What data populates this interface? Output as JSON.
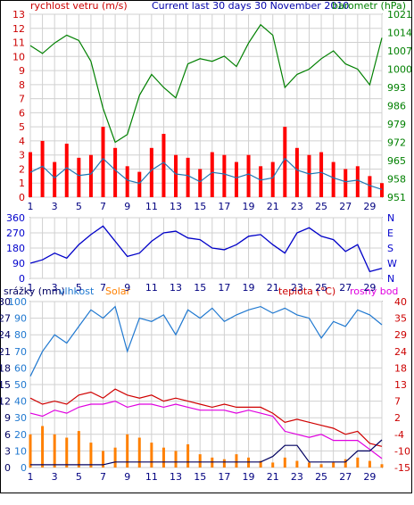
{
  "header": {
    "left_label": "rychlost vetru (m/s)",
    "title": "Current last 30 days 30 November 2010",
    "right_label": "barometr (hPa)"
  },
  "panel3_labels": {
    "rain": "srážky (mm)",
    "humidity": "vlhkost",
    "solar": "Solar",
    "temperature": "teplota (°C)",
    "dewpoint": "rosný bod"
  },
  "colors": {
    "wind": "#ff0000",
    "wind_avg": "#1f78b4",
    "barometer": "#008000",
    "direction": "#0000c8",
    "humidity": "#1f78d0",
    "solar": "#ff8000",
    "temperature": "#d00000",
    "dewpoint": "#e000e0",
    "rain": "#000060",
    "axis_left": "#0000ff",
    "axis_right": "#cc0000",
    "grid": "#d0d0d0"
  },
  "chart_data": [
    {
      "type": "line",
      "title": "Current last 30 days 30 November 2010",
      "ylabel": "rychlost vetru (m/s)",
      "y2label": "barometr (hPa)",
      "ylim": [
        0,
        13
      ],
      "y2lim": [
        951,
        1021
      ],
      "y_ticks": [
        "0",
        "1",
        "2",
        "3",
        "4",
        "5",
        "6",
        "7",
        "8",
        "9",
        "10",
        "11",
        "12",
        "13"
      ],
      "y2_ticks": [
        "951",
        "958",
        "965",
        "972",
        "979",
        "986",
        "993",
        "1000",
        "1007",
        "1014",
        "1021"
      ],
      "x_ticks": [
        "1",
        "3",
        "5",
        "7",
        "9",
        "11",
        "13",
        "15",
        "17",
        "19",
        "21",
        "23",
        "25",
        "27",
        "29"
      ],
      "grid": true,
      "series": [
        {
          "name": "rychlost vetru (m/s)",
          "axis": "left",
          "x": [
            0,
            1,
            2,
            3,
            4,
            5,
            6,
            7,
            8,
            9,
            10,
            11,
            12,
            13,
            14,
            15,
            16,
            17,
            18,
            19,
            20,
            21,
            22,
            23,
            24,
            25,
            26,
            27,
            28,
            29
          ],
          "values": [
            3.2,
            4.0,
            2.5,
            3.8,
            2.8,
            3.0,
            5.0,
            3.5,
            2.2,
            1.8,
            3.5,
            4.5,
            3.0,
            2.8,
            2.0,
            3.2,
            3.0,
            2.5,
            3.0,
            2.2,
            2.5,
            5.0,
            3.5,
            3.0,
            3.2,
            2.5,
            2.0,
            2.2,
            1.5,
            1.0
          ]
        },
        {
          "name": "barometr (hPa)",
          "axis": "right",
          "x": [
            0,
            1,
            2,
            3,
            4,
            5,
            6,
            7,
            8,
            9,
            10,
            11,
            12,
            13,
            14,
            15,
            16,
            17,
            18,
            19,
            20,
            21,
            22,
            23,
            24,
            25,
            26,
            27,
            28,
            29
          ],
          "values": [
            1009,
            1006,
            1010,
            1013,
            1011,
            1003,
            985,
            972,
            975,
            990,
            998,
            993,
            989,
            1002,
            1004,
            1003,
            1005,
            1001,
            1010,
            1017,
            1013,
            993,
            998,
            1000,
            1004,
            1007,
            1002,
            1000,
            994,
            1012
          ]
        }
      ]
    },
    {
      "type": "line",
      "ylim": [
        0,
        360
      ],
      "y_ticks": [
        "0",
        "90",
        "180",
        "270",
        "360"
      ],
      "y2_ticks": [
        "N",
        "W",
        "S",
        "E",
        "N"
      ],
      "x_ticks": [
        "1",
        "3",
        "5",
        "7",
        "9",
        "11",
        "13",
        "15",
        "17",
        "19",
        "21",
        "23",
        "25",
        "27",
        "29"
      ],
      "grid": true,
      "series": [
        {
          "name": "",
          "x": [
            0,
            1,
            2,
            3,
            4,
            5,
            6,
            7,
            8,
            9,
            10,
            11,
            12,
            13,
            14,
            15,
            16,
            17,
            18,
            19,
            20,
            21,
            22,
            23,
            24,
            25,
            26,
            27,
            28,
            29
          ],
          "values": [
            90,
            110,
            150,
            120,
            200,
            260,
            310,
            220,
            130,
            150,
            220,
            270,
            280,
            240,
            230,
            180,
            170,
            200,
            250,
            260,
            200,
            150,
            270,
            300,
            250,
            230,
            160,
            200,
            40,
            60
          ]
        }
      ]
    },
    {
      "type": "line",
      "ylim": [
        0,
        100
      ],
      "y2lim": [
        -15,
        40
      ],
      "y_ticks": [
        "0",
        "10",
        "20",
        "30",
        "40",
        "50",
        "60",
        "70",
        "80",
        "90",
        "100"
      ],
      "y_ticks_rain": [
        "0",
        "3",
        "6",
        "9",
        "12",
        "15",
        "18",
        "21",
        "24",
        "27",
        "30"
      ],
      "y2_ticks": [
        "-15",
        "-10",
        "-4",
        "2",
        "7",
        "13",
        "18",
        "24",
        "29",
        "35",
        "40"
      ],
      "x_ticks": [
        "1",
        "3",
        "5",
        "7",
        "9",
        "11",
        "13",
        "15",
        "17",
        "19",
        "21",
        "23",
        "25",
        "27",
        "29"
      ],
      "grid": true,
      "series": [
        {
          "name": "vlhkost",
          "axis": "left",
          "x": [
            0,
            1,
            2,
            3,
            4,
            5,
            6,
            7,
            8,
            9,
            10,
            11,
            12,
            13,
            14,
            15,
            16,
            17,
            18,
            19,
            20,
            21,
            22,
            23,
            24,
            25,
            26,
            27,
            28,
            29
          ],
          "values": [
            55,
            70,
            80,
            75,
            85,
            95,
            90,
            97,
            70,
            90,
            88,
            92,
            80,
            95,
            90,
            96,
            88,
            92,
            95,
            97,
            93,
            96,
            92,
            90,
            78,
            88,
            85,
            95,
            92,
            86
          ]
        },
        {
          "name": "teplota (°C)",
          "axis": "right",
          "x": [
            0,
            1,
            2,
            3,
            4,
            5,
            6,
            7,
            8,
            9,
            10,
            11,
            12,
            13,
            14,
            15,
            16,
            17,
            18,
            19,
            20,
            21,
            22,
            23,
            24,
            25,
            26,
            27,
            28,
            29
          ],
          "values": [
            8,
            6,
            7,
            6,
            9,
            10,
            8,
            11,
            9,
            8,
            9,
            7,
            8,
            7,
            6,
            5,
            6,
            5,
            5,
            5,
            3,
            0,
            1,
            0,
            -1,
            -2,
            -4,
            -3,
            -7,
            -8
          ]
        },
        {
          "name": "rosný bod",
          "axis": "right",
          "x": [
            0,
            1,
            2,
            3,
            4,
            5,
            6,
            7,
            8,
            9,
            10,
            11,
            12,
            13,
            14,
            15,
            16,
            17,
            18,
            19,
            20,
            21,
            22,
            23,
            24,
            25,
            26,
            27,
            28,
            29
          ],
          "values": [
            3,
            2,
            4,
            3,
            5,
            6,
            6,
            7,
            5,
            6,
            6,
            5,
            6,
            5,
            4,
            4,
            4,
            3,
            4,
            3,
            2,
            -3,
            -4,
            -5,
            -4,
            -6,
            -6,
            -6,
            -9,
            -12
          ]
        },
        {
          "name": "Solar",
          "axis": "left",
          "x": [
            0,
            1,
            2,
            3,
            4,
            5,
            6,
            7,
            8,
            9,
            10,
            11,
            12,
            13,
            14,
            15,
            16,
            17,
            18,
            19,
            20,
            21,
            22,
            23,
            24,
            25,
            26,
            27,
            28,
            29
          ],
          "values": [
            20,
            25,
            20,
            18,
            22,
            15,
            10,
            12,
            20,
            18,
            15,
            12,
            10,
            14,
            8,
            6,
            5,
            8,
            6,
            4,
            3,
            6,
            4,
            3,
            2,
            3,
            5,
            6,
            4,
            2
          ]
        },
        {
          "name": "srážky (mm)",
          "axis": "left",
          "x": [
            0,
            1,
            2,
            3,
            4,
            5,
            6,
            7,
            8,
            9,
            10,
            11,
            12,
            13,
            14,
            15,
            16,
            17,
            18,
            19,
            20,
            21,
            22,
            23,
            24,
            25,
            26,
            27,
            28,
            29
          ],
          "values": [
            0.5,
            0.5,
            0.5,
            0.5,
            0.5,
            0.5,
            0.5,
            1,
            1,
            1,
            1,
            1,
            1,
            1,
            1,
            1,
            1,
            1,
            1,
            1,
            2,
            4,
            4,
            1,
            1,
            1,
            1,
            3,
            3,
            5
          ]
        }
      ]
    }
  ]
}
